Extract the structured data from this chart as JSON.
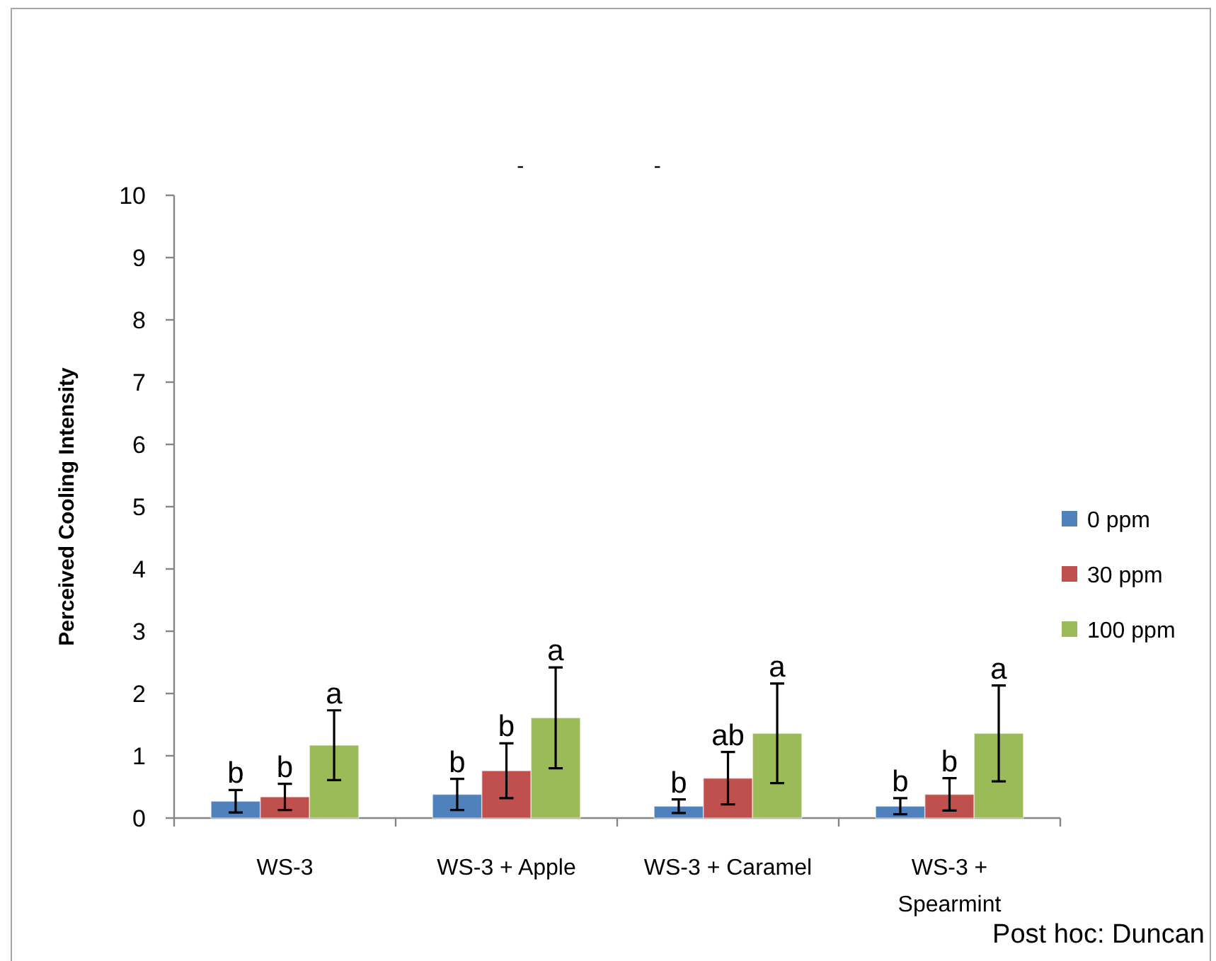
{
  "chart_data": {
    "type": "bar",
    "title": "-                      -",
    "ylabel": "Perceived Cooling Intensity",
    "categories": [
      "WS-3",
      "WS-3 + Apple",
      "WS-3 + Caramel",
      "WS-3 + Spearmint"
    ],
    "series": [
      {
        "name": "0 ppm",
        "color": "#4f81bd",
        "values": [
          0.27,
          0.38,
          0.19,
          0.19
        ],
        "errors": [
          0.18,
          0.25,
          0.11,
          0.13
        ],
        "value_labels": [
          "b",
          "b",
          "b",
          "b"
        ]
      },
      {
        "name": "30 ppm",
        "color": "#c0504d",
        "values": [
          0.34,
          0.76,
          0.64,
          0.38
        ],
        "errors": [
          0.21,
          0.44,
          0.42,
          0.26
        ],
        "value_labels": [
          "b",
          "b",
          "ab",
          "b"
        ]
      },
      {
        "name": "100 ppm",
        "color": "#9bbb59",
        "values": [
          1.17,
          1.61,
          1.36,
          1.36
        ],
        "errors": [
          0.56,
          0.81,
          0.8,
          0.77
        ],
        "value_labels": [
          "a",
          "a",
          "a",
          "a"
        ]
      }
    ],
    "ylim": [
      0,
      10
    ],
    "yticks": [
      0,
      1,
      2,
      3,
      4,
      5,
      6,
      7,
      8,
      9,
      10
    ],
    "legend": "right",
    "annotations": [
      "Post hoc: Duncan"
    ]
  }
}
